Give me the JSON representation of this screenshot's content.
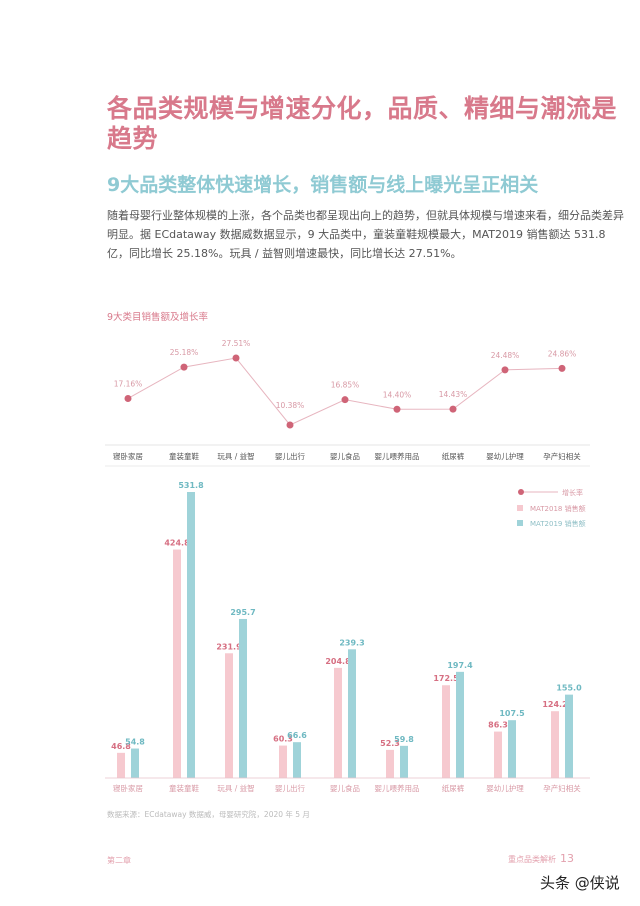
{
  "title": "各品类规模与增速分化，品质、精细与潮流是趋势",
  "subtitle": "9大品类整体快速增长，销售额与线上曝光呈正相关",
  "paragraph": "随着母婴行业整体规模的上涨，各个品类也都呈现出向上的趋势，但就具体规模与增速来看，细分品类差异明显。据 ECdataway 数据威数据显示，9 大品类中，童装童鞋规模最大，MAT2019 销售额达 531.8 亿，同比增长 25.18%。玩具 / 益智则增速最快，同比增长达 27.51%。",
  "chart_title": "9大类目销售额及增长率",
  "source": "数据来源：ECdataway 数据威，母婴研究院，2020 年 5 月",
  "footer": {
    "chapter": "第二章",
    "section": "重点品类解析",
    "page": "13"
  },
  "watermark": "头条 @侠说",
  "colors": {
    "title": "#d8798b",
    "subtitle": "#8fcad3",
    "growth": "#cf6477",
    "mat2018": "#f6c9cf",
    "mat2019": "#9fd3d9"
  },
  "chart_data": [
    {
      "type": "line",
      "categories": [
        "寝卧家居",
        "童装童鞋",
        "玩具 / 益智",
        "婴儿出行",
        "婴儿食品",
        "婴儿喂养用品",
        "纸尿裤",
        "婴幼儿护理",
        "孕产妇相关"
      ],
      "series": [
        {
          "name": "增长率",
          "values": [
            17.16,
            25.18,
            27.51,
            10.38,
            16.85,
            14.4,
            14.43,
            24.48,
            24.86
          ],
          "labels": [
            "17.16%",
            "25.18%",
            "27.51%",
            "10.38%",
            "16.85%",
            "14.40%",
            "14.43%",
            "24.48%",
            "24.86%"
          ]
        }
      ]
    },
    {
      "type": "bar",
      "categories": [
        "寝卧家居",
        "童装童鞋",
        "玩具 / 益智",
        "婴儿出行",
        "婴儿食品",
        "婴儿喂养用品",
        "纸尿裤",
        "婴幼儿护理",
        "孕产妇相关"
      ],
      "series": [
        {
          "name": "MAT2018 销售额",
          "values": [
            46.8,
            424.8,
            231.9,
            60.3,
            204.8,
            52.3,
            172.5,
            86.3,
            124.2
          ]
        },
        {
          "name": "MAT2019 销售额",
          "values": [
            54.8,
            531.8,
            295.7,
            66.6,
            239.3,
            59.8,
            197.4,
            107.5,
            155.0
          ]
        }
      ],
      "legend": {
        "placement": "top-right",
        "entries": [
          "增长率",
          "MAT2018 销售额",
          "MAT2019 销售额"
        ]
      }
    }
  ]
}
